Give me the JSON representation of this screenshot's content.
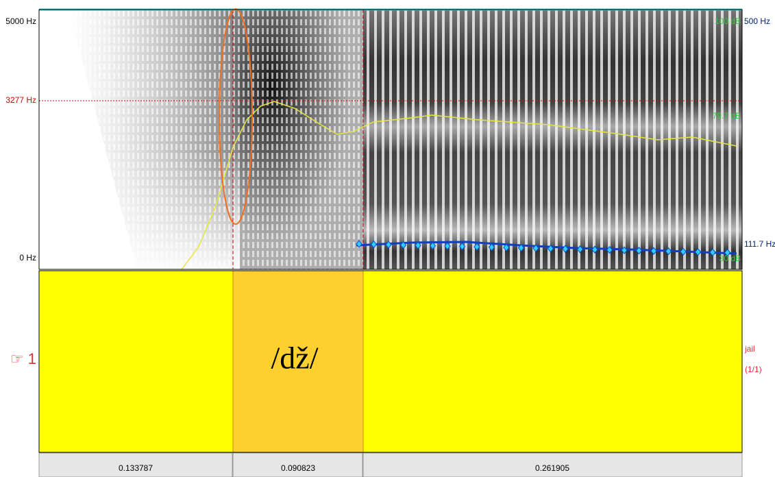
{
  "spectrogram": {
    "freq_top": "5000 Hz",
    "cursor_freq": "3277 Hz",
    "freq_bottom": "0 Hz",
    "pitch_top": "500 Hz",
    "pitch_value": "111.7 Hz",
    "intensity_top": "100 dB",
    "intensity_value": "79.7 dB",
    "intensity_bottom": "30 dB"
  },
  "tier": {
    "number": "☞ 1",
    "interval_label": "/dž/",
    "word": "jail",
    "count": "(1/1)"
  },
  "durations": [
    "0.133787",
    "0.090823",
    "0.261905"
  ]
}
